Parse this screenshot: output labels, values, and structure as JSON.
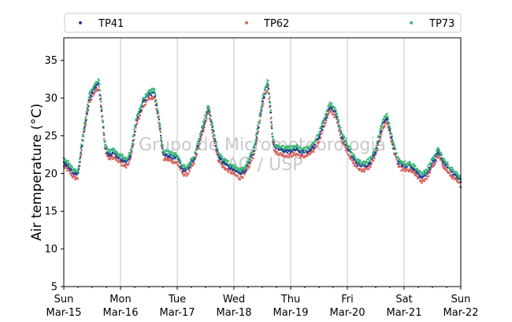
{
  "chart_data": {
    "type": "scatter",
    "ylabel": "Air temperature (°C)",
    "xlabel": "",
    "watermark": [
      "Grupo de Micrometeorologia",
      "IAG / USP"
    ],
    "legend_placement": "top, outside plot",
    "grid": "vertical lines at day boundaries",
    "ylim": [
      5,
      38
    ],
    "yticks": [
      5,
      10,
      15,
      20,
      25,
      30,
      35
    ],
    "xlim": [
      "2020-03-15",
      "2020-03-22"
    ],
    "xticks": [
      {
        "day": "Sun",
        "date": "Mar-15"
      },
      {
        "day": "Mon",
        "date": "Mar-16"
      },
      {
        "day": "Tue",
        "date": "Mar-17"
      },
      {
        "day": "Wed",
        "date": "Mar-18"
      },
      {
        "day": "Thu",
        "date": "Mar-19"
      },
      {
        "day": "Fri",
        "date": "Mar-20"
      },
      {
        "day": "Sat",
        "date": "Mar-21"
      },
      {
        "day": "Sun",
        "date": "Mar-22"
      }
    ],
    "series": [
      {
        "name": "TP41",
        "color": "#1f3f8f",
        "offset": 0.0
      },
      {
        "name": "TP62",
        "color": "#d9625e",
        "offset": -0.6
      },
      {
        "name": "TP73",
        "color": "#3ab877",
        "offset": 0.4
      }
    ],
    "profile": {
      "x_days": [
        0.0,
        0.08,
        0.18,
        0.25,
        0.35,
        0.45,
        0.55,
        0.62,
        0.7,
        0.72,
        0.76,
        0.8,
        0.85,
        0.9,
        1.0,
        1.1,
        1.18,
        1.28,
        1.4,
        1.5,
        1.6,
        1.7,
        1.72,
        1.76,
        1.8,
        1.88,
        2.0,
        2.1,
        2.18,
        2.3,
        2.45,
        2.55,
        2.65,
        2.72,
        2.8,
        2.9,
        3.0,
        3.1,
        3.2,
        3.35,
        3.45,
        3.5,
        3.55,
        3.6,
        3.65,
        3.68,
        3.72,
        3.8,
        3.9,
        4.0,
        4.1,
        4.2,
        4.3,
        4.4,
        4.5,
        4.55,
        4.62,
        4.7,
        4.8,
        4.9,
        5.0,
        5.1,
        5.2,
        5.3,
        5.4,
        5.5,
        5.55,
        5.62,
        5.7,
        5.8,
        5.9,
        6.0,
        6.1,
        6.2,
        6.25,
        6.3,
        6.4,
        6.5,
        6.55,
        6.6,
        6.7,
        6.8,
        6.9,
        7.0
      ],
      "y_values": [
        21.5,
        21.0,
        20.0,
        20.0,
        25.5,
        30.0,
        31.5,
        32.0,
        26.0,
        24.0,
        23.0,
        22.5,
        22.8,
        22.6,
        22.0,
        21.5,
        22.5,
        27.0,
        29.5,
        30.5,
        30.8,
        26.0,
        24.5,
        22.5,
        22.5,
        22.3,
        22.0,
        20.5,
        20.5,
        22.0,
        26.0,
        28.8,
        25.0,
        22.5,
        21.5,
        21.0,
        20.5,
        20.0,
        20.5,
        23.0,
        27.0,
        29.5,
        31.0,
        32.0,
        28.0,
        25.0,
        23.5,
        23.2,
        23.0,
        23.0,
        23.2,
        22.8,
        23.0,
        23.5,
        25.0,
        26.0,
        27.5,
        29.0,
        28.0,
        25.0,
        23.5,
        22.0,
        21.2,
        21.0,
        21.5,
        23.0,
        24.5,
        26.5,
        27.5,
        24.0,
        21.5,
        21.0,
        21.0,
        20.5,
        20.0,
        19.5,
        20.0,
        21.5,
        22.0,
        23.0,
        21.5,
        20.5,
        19.8,
        19.0
      ]
    },
    "legend_marker": "•"
  }
}
